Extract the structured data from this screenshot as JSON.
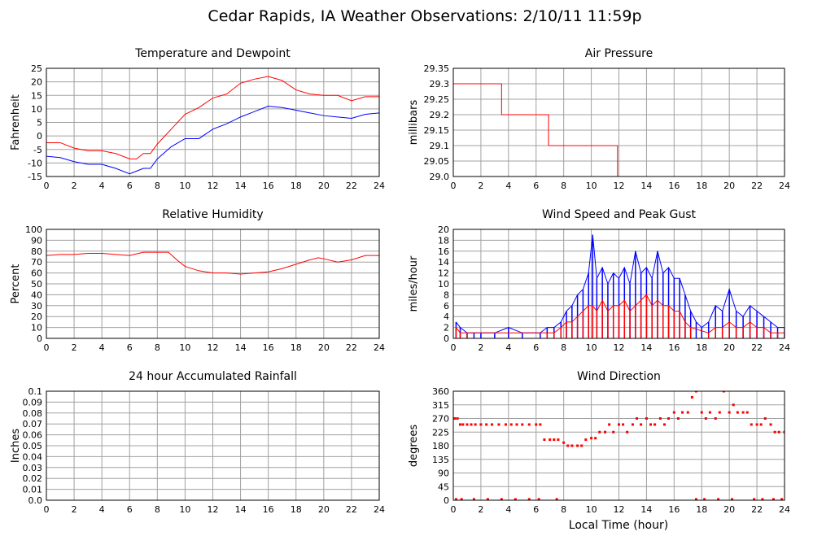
{
  "page_title": "Cedar Rapids, IA Weather Observations: 2/10/11 11:59p",
  "x_axis_label": "Local Time (hour)",
  "chart_data": [
    {
      "type": "line",
      "title": "Temperature and Dewpoint",
      "ylabel": "Fahrenheit",
      "xlabel": "",
      "xlim": [
        0,
        24
      ],
      "ylim": [
        -15,
        25
      ],
      "xticks": [
        0,
        2,
        4,
        6,
        8,
        10,
        12,
        14,
        16,
        18,
        20,
        22,
        24
      ],
      "yticks": [
        -15,
        -10,
        -5,
        0,
        5,
        10,
        15,
        20,
        25
      ],
      "ytick_labels": [
        "-15",
        "-10",
        "-5",
        "0",
        "5",
        "10",
        "15",
        "20",
        "25"
      ],
      "grid": true,
      "series": [
        {
          "color": "#ff0000",
          "x": [
            0,
            1,
            2,
            3,
            4,
            5,
            6,
            6.5,
            7,
            7.5,
            8,
            9,
            10,
            11,
            12,
            13,
            14,
            15,
            16,
            17,
            18,
            19,
            20,
            21,
            22,
            23,
            24
          ],
          "y": [
            -2.5,
            -2.5,
            -4.5,
            -5.5,
            -5.5,
            -6.5,
            -8.5,
            -8.5,
            -6.5,
            -6.5,
            -3,
            2.5,
            8,
            10.5,
            14,
            15.5,
            19.5,
            21,
            22,
            20.5,
            17,
            15.5,
            15,
            15,
            13,
            14.5,
            14.5
          ]
        },
        {
          "color": "#0000ff",
          "x": [
            0,
            1,
            2,
            3,
            4,
            5,
            6,
            6.5,
            7,
            7.5,
            8,
            9,
            10,
            11,
            12,
            13,
            14,
            15,
            16,
            17,
            18,
            19,
            20,
            21,
            22,
            23,
            24
          ],
          "y": [
            -7.5,
            -8,
            -9.5,
            -10.5,
            -10.5,
            -12,
            -14,
            -13,
            -12,
            -12,
            -8.5,
            -4,
            -1,
            -1,
            2.5,
            4.5,
            7,
            9,
            11,
            10.5,
            9.5,
            8.5,
            7.5,
            7,
            6.5,
            8,
            8.5
          ]
        }
      ]
    },
    {
      "type": "line",
      "title": "Air Pressure",
      "ylabel": "millibars",
      "xlabel": "",
      "xlim": [
        0,
        24
      ],
      "ylim": [
        29.0,
        29.35
      ],
      "xticks": [
        0,
        2,
        4,
        6,
        8,
        10,
        12,
        14,
        16,
        18,
        20,
        22,
        24
      ],
      "yticks": [
        29.0,
        29.05,
        29.1,
        29.15,
        29.2,
        29.25,
        29.3,
        29.35
      ],
      "ytick_labels": [
        "29.0",
        "29.05",
        "29.1",
        "29.15",
        "29.2",
        "29.25",
        "29.3",
        "29.35"
      ],
      "grid": true,
      "series": [
        {
          "color": "#ff0000",
          "step": true,
          "x": [
            0,
            3.5,
            3.5,
            6.9,
            6.9,
            11.9,
            11.9,
            24
          ],
          "y": [
            29.3,
            29.3,
            29.2,
            29.2,
            29.1,
            29.1,
            29.0,
            29.0
          ]
        }
      ]
    },
    {
      "type": "line",
      "title": "Relative Humidity",
      "ylabel": "Percent",
      "xlabel": "",
      "xlim": [
        0,
        24
      ],
      "ylim": [
        0,
        100
      ],
      "xticks": [
        0,
        2,
        4,
        6,
        8,
        10,
        12,
        14,
        16,
        18,
        20,
        22,
        24
      ],
      "yticks": [
        0,
        10,
        20,
        30,
        40,
        50,
        60,
        70,
        80,
        90,
        100
      ],
      "ytick_labels": [
        "0",
        "10",
        "20",
        "30",
        "40",
        "50",
        "60",
        "70",
        "80",
        "90",
        "100"
      ],
      "grid": true,
      "series": [
        {
          "color": "#ff0000",
          "x": [
            0,
            1,
            2,
            3,
            4,
            5,
            6,
            7,
            8,
            8.8,
            9.5,
            10,
            11,
            12,
            13,
            14,
            15,
            16,
            17,
            18,
            19,
            19.6,
            20,
            21,
            22,
            23,
            24
          ],
          "y": [
            76,
            77,
            77,
            78,
            78,
            77,
            76,
            79,
            79,
            79,
            71,
            66,
            62,
            60,
            60,
            59,
            60,
            61,
            64,
            68,
            72,
            74,
            73,
            70,
            72,
            76,
            76
          ]
        }
      ]
    },
    {
      "type": "bar",
      "title": "Wind Speed and Peak Gust",
      "ylabel": "miles/hour",
      "xlabel": "",
      "xlim": [
        0,
        24
      ],
      "ylim": [
        0,
        20
      ],
      "xticks": [
        0,
        2,
        4,
        6,
        8,
        10,
        12,
        14,
        16,
        18,
        20,
        22,
        24
      ],
      "yticks": [
        0,
        2,
        4,
        6,
        8,
        10,
        12,
        14,
        16,
        18,
        20
      ],
      "ytick_labels": [
        "0",
        "2",
        "4",
        "6",
        "8",
        "10",
        "12",
        "14",
        "16",
        "18",
        "20"
      ],
      "grid": true,
      "series": [
        {
          "color": "#0000ff",
          "x": [
            0.2,
            0.5,
            1,
            1.5,
            2,
            3,
            4,
            5,
            6.3,
            6.8,
            7.3,
            7.8,
            8.2,
            8.6,
            9,
            9.4,
            9.8,
            10.1,
            10.4,
            10.8,
            11.2,
            11.6,
            12,
            12.4,
            12.8,
            13.2,
            13.6,
            14,
            14.4,
            14.8,
            15.2,
            15.6,
            16,
            16.4,
            16.8,
            17.2,
            17.6,
            18,
            18.5,
            19,
            19.5,
            20,
            20.5,
            21,
            21.5,
            22,
            22.5,
            23,
            23.5,
            24
          ],
          "y": [
            3,
            2,
            1,
            1,
            1,
            1,
            2,
            1,
            1,
            2,
            2,
            3,
            5,
            6,
            8,
            9,
            12,
            19,
            11,
            13,
            10,
            12,
            11,
            13,
            10,
            16,
            12,
            13,
            11,
            16,
            12,
            13,
            11,
            11,
            8,
            5,
            3,
            2,
            3,
            6,
            5,
            9,
            5,
            4,
            6,
            5,
            4,
            3,
            2,
            2
          ]
        },
        {
          "color": "#ff0000",
          "x": [
            0.2,
            0.5,
            1,
            6.8,
            7.3,
            7.8,
            8.2,
            8.6,
            9,
            9.4,
            9.8,
            10.1,
            10.4,
            10.8,
            11.2,
            11.6,
            12,
            12.4,
            12.8,
            13.2,
            13.6,
            14,
            14.4,
            14.8,
            15.2,
            15.6,
            16,
            16.4,
            16.8,
            17.2,
            18.5,
            19,
            19.5,
            20,
            20.5,
            21,
            21.5,
            22,
            22.5,
            23,
            23.5,
            24
          ],
          "y": [
            2,
            1,
            1,
            1,
            1,
            2,
            3,
            3,
            4,
            5,
            6,
            6,
            5,
            7,
            5,
            6,
            6,
            7,
            5,
            6,
            7,
            8,
            6,
            7,
            6,
            6,
            5,
            5,
            3,
            2,
            1,
            2,
            2,
            3,
            2,
            2,
            3,
            2,
            2,
            1,
            1,
            1
          ]
        }
      ]
    },
    {
      "type": "line",
      "title": "24 hour Accumulated Rainfall",
      "ylabel": "Inches",
      "xlabel": "",
      "xlim": [
        0,
        24
      ],
      "ylim": [
        0,
        0.1
      ],
      "xticks": [
        0,
        2,
        4,
        6,
        8,
        10,
        12,
        14,
        16,
        18,
        20,
        22,
        24
      ],
      "yticks": [
        0.0,
        0.01,
        0.02,
        0.03,
        0.04,
        0.05,
        0.06,
        0.07,
        0.08,
        0.09,
        0.1
      ],
      "ytick_labels": [
        "0.0",
        "0.01",
        "0.02",
        "0.03",
        "0.04",
        "0.05",
        "0.06",
        "0.07",
        "0.08",
        "0.09",
        "0.1"
      ],
      "grid": true,
      "series": [
        {
          "color": "#ff0000",
          "x": [
            0,
            24
          ],
          "y": [
            0,
            0
          ]
        }
      ]
    },
    {
      "type": "scatter",
      "title": "Wind Direction",
      "ylabel": "degrees",
      "xlabel": "Local Time (hour)",
      "xlim": [
        0,
        24
      ],
      "ylim": [
        0,
        360
      ],
      "xticks": [
        0,
        2,
        4,
        6,
        8,
        10,
        12,
        14,
        16,
        18,
        20,
        22,
        24
      ],
      "yticks": [
        0,
        45,
        90,
        135,
        180,
        225,
        270,
        315,
        360
      ],
      "ytick_labels": [
        "0",
        "45",
        "90",
        "135",
        "180",
        "225",
        "270",
        "315",
        "360"
      ],
      "grid": true,
      "series": [
        {
          "color": "#ff0000",
          "x": [
            0.1,
            0.3,
            0.5,
            0.7,
            1,
            1.3,
            1.6,
            2,
            2.4,
            2.8,
            3.3,
            3.8,
            4.2,
            4.6,
            5,
            5.5,
            6,
            6.3,
            6.6,
            7,
            7.3,
            7.6,
            8,
            8.3,
            8.6,
            9,
            9.3,
            9.6,
            10,
            10.3,
            10.6,
            11,
            11.3,
            11.6,
            12,
            12.3,
            12.6,
            13,
            13.3,
            13.6,
            14,
            14.3,
            14.6,
            15,
            15.3,
            15.6,
            16,
            16.3,
            16.6,
            17,
            17.3,
            17.6,
            18,
            18.3,
            18.6,
            19,
            19.3,
            19.6,
            20,
            20.3,
            20.6,
            21,
            21.3,
            21.6,
            22,
            22.3,
            22.6,
            23,
            23.3,
            23.6,
            24,
            0.2,
            0.6,
            1.5,
            2.5,
            3.5,
            4.5,
            5.5,
            6.2,
            7.5,
            17.6,
            18.2,
            19.2,
            20.2,
            21.8,
            22.4,
            23.2,
            23.8
          ],
          "y": [
            270,
            270,
            250,
            250,
            250,
            250,
            250,
            250,
            250,
            250,
            250,
            250,
            250,
            250,
            250,
            250,
            250,
            250,
            200,
            200,
            200,
            200,
            190,
            180,
            180,
            180,
            180,
            200,
            205,
            205,
            225,
            225,
            250,
            225,
            250,
            250,
            225,
            250,
            270,
            250,
            270,
            250,
            250,
            270,
            250,
            270,
            290,
            270,
            290,
            290,
            340,
            360,
            290,
            270,
            290,
            270,
            290,
            360,
            290,
            315,
            290,
            290,
            290,
            250,
            250,
            250,
            270,
            250,
            225,
            225,
            225,
            3,
            3,
            3,
            3,
            3,
            3,
            3,
            3,
            3,
            3,
            3,
            3,
            3,
            3,
            3,
            3,
            3
          ]
        }
      ]
    }
  ]
}
